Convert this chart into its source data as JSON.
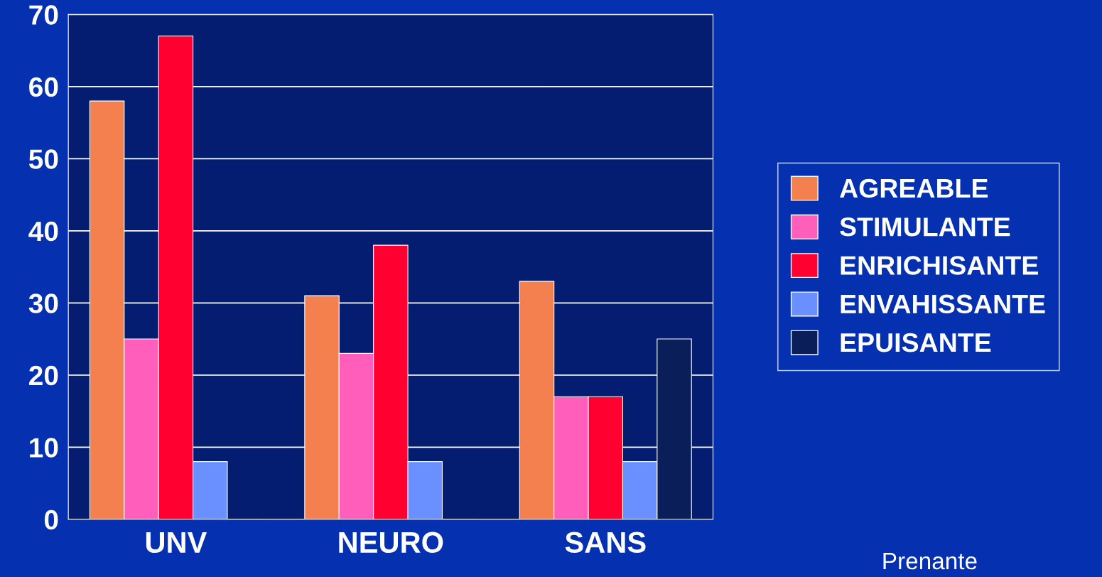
{
  "chart_data": {
    "type": "bar",
    "categories": [
      "UNV",
      "NEURO",
      "SANS"
    ],
    "series": [
      {
        "name": "AGREABLE",
        "color": "#f4804f",
        "values": [
          58,
          31,
          33
        ]
      },
      {
        "name": "STIMULANTE",
        "color": "#ff5fba",
        "values": [
          25,
          23,
          17
        ]
      },
      {
        "name": "ENRICHISANTE",
        "color": "#ff0030",
        "values": [
          67,
          38,
          17
        ]
      },
      {
        "name": "ENVAHISSANTE",
        "color": "#6a8fff",
        "values": [
          8,
          8,
          8
        ]
      },
      {
        "name": "EPUISANTE",
        "color": "#0a1e5a",
        "values": [
          0,
          0,
          25
        ]
      }
    ],
    "ylim": [
      0,
      70
    ],
    "yticks": [
      0,
      10,
      20,
      30,
      40,
      50,
      60,
      70
    ],
    "grid": "y",
    "legend": "right",
    "annotations": [
      "Prenante"
    ]
  }
}
